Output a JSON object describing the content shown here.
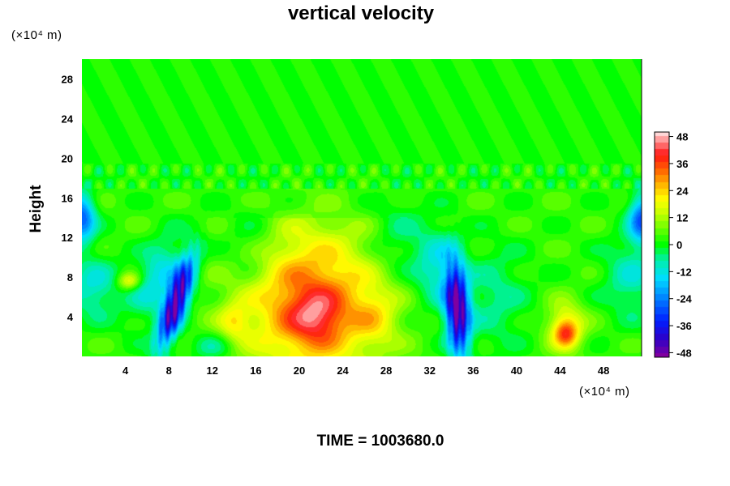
{
  "chart_data": {
    "type": "heatmap",
    "title": "vertical velocity",
    "ylabel": "Height",
    "xlabel": "",
    "x_unit_label": "(×10⁴ m)",
    "y_unit_label": "(×10⁴ m)",
    "x_ticks": [
      4,
      8,
      12,
      16,
      20,
      24,
      28,
      32,
      36,
      40,
      44,
      48
    ],
    "y_ticks": [
      4,
      8,
      12,
      16,
      20,
      24,
      28
    ],
    "xlim": [
      0,
      51.5
    ],
    "ylim": [
      0,
      30
    ],
    "grid": false,
    "colorbar": {
      "placement": "right",
      "ticks": [
        48,
        36,
        24,
        12,
        0,
        -12,
        -24,
        -36,
        -48
      ],
      "range": [
        -50,
        50
      ]
    },
    "features": [
      {
        "type": "updraft",
        "x": 21,
        "y": 5,
        "peak": 48
      },
      {
        "type": "updraft",
        "x": 44.5,
        "y": 2.5,
        "peak": 45
      },
      {
        "type": "updraft",
        "x": 4,
        "y": 7.5,
        "peak": 25
      },
      {
        "type": "downdraft",
        "x": 8.5,
        "y": 5.5,
        "peak": -50
      },
      {
        "type": "downdraft",
        "x": 34.5,
        "y": 4,
        "peak": -50
      },
      {
        "type": "downdraft",
        "x": 0,
        "y": 14,
        "peak": -30
      },
      {
        "type": "downdraft",
        "x": 51.5,
        "y": 14,
        "peak": -30
      }
    ],
    "annotation": "TIME = 1003680.0"
  }
}
